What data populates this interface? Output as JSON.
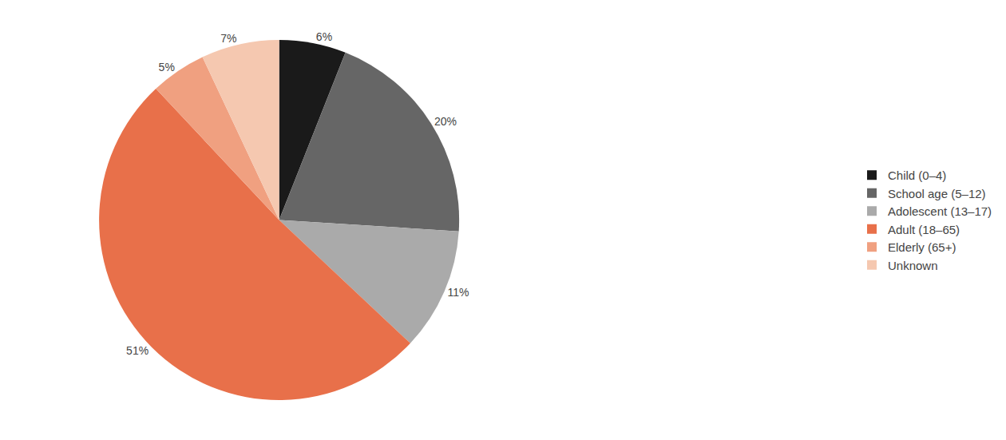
{
  "chart_data": {
    "type": "pie",
    "categories": [
      "Child (0–4)",
      "School age (5–12)",
      "Adolescent (13–17)",
      "Adult (18–65)",
      "Elderly (65+)",
      "Unknown"
    ],
    "values": [
      6,
      20,
      11,
      51,
      5,
      7
    ],
    "value_labels": [
      "6%",
      "20%",
      "11%",
      "51%",
      "5%",
      "7%"
    ],
    "colors": [
      "#1a1a1a",
      "#666666",
      "#aaaaaa",
      "#e8704a",
      "#f0a080",
      "#f5c8b0"
    ],
    "data_labels": true,
    "legend": "right"
  }
}
